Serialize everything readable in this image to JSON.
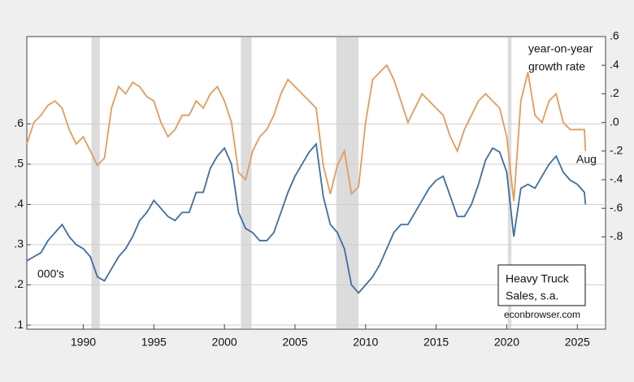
{
  "chart_data": {
    "type": "line",
    "title": [
      "Heavy Truck",
      "Sales, s.a."
    ],
    "source": "econbrowser.com",
    "annotations": [
      "year-on-year",
      "growth rate",
      "Aug",
      "000's"
    ],
    "x": [
      1986.0,
      1986.5,
      1987.0,
      1987.5,
      1988.0,
      1988.5,
      1989.0,
      1989.5,
      1990.0,
      1990.5,
      1991.0,
      1991.5,
      1992.0,
      1992.5,
      1993.0,
      1993.5,
      1994.0,
      1994.5,
      1995.0,
      1995.5,
      1996.0,
      1996.5,
      1997.0,
      1997.5,
      1998.0,
      1998.5,
      1999.0,
      1999.5,
      2000.0,
      2000.5,
      2001.0,
      2001.5,
      2002.0,
      2002.5,
      2003.0,
      2003.5,
      2004.0,
      2004.5,
      2005.0,
      2005.5,
      2006.0,
      2006.5,
      2007.0,
      2007.5,
      2008.0,
      2008.5,
      2009.0,
      2009.5,
      2010.0,
      2010.5,
      2011.0,
      2011.5,
      2012.0,
      2012.5,
      2013.0,
      2013.5,
      2014.0,
      2014.5,
      2015.0,
      2015.5,
      2016.0,
      2016.5,
      2017.0,
      2017.5,
      2018.0,
      2018.5,
      2019.0,
      2019.5,
      2020.0,
      2020.5,
      2021.0,
      2021.5,
      2022.0,
      2022.5,
      2023.0,
      2023.5,
      2024.0,
      2024.5,
      2025.0,
      2025.5,
      2025.58
    ],
    "series": [
      {
        "name": "level",
        "color": "#3d6ea3",
        "axis": "y",
        "values": [
          0.26,
          0.27,
          0.28,
          0.31,
          0.33,
          0.35,
          0.32,
          0.3,
          0.29,
          0.27,
          0.22,
          0.21,
          0.24,
          0.27,
          0.29,
          0.32,
          0.36,
          0.38,
          0.41,
          0.39,
          0.37,
          0.36,
          0.38,
          0.38,
          0.43,
          0.43,
          0.49,
          0.52,
          0.54,
          0.5,
          0.38,
          0.34,
          0.33,
          0.31,
          0.31,
          0.33,
          0.38,
          0.43,
          0.47,
          0.5,
          0.53,
          0.55,
          0.42,
          0.35,
          0.33,
          0.29,
          0.2,
          0.18,
          0.2,
          0.22,
          0.25,
          0.29,
          0.33,
          0.35,
          0.35,
          0.38,
          0.41,
          0.44,
          0.46,
          0.47,
          0.42,
          0.37,
          0.37,
          0.4,
          0.45,
          0.51,
          0.54,
          0.53,
          0.48,
          0.32,
          0.44,
          0.45,
          0.44,
          0.47,
          0.5,
          0.52,
          0.48,
          0.46,
          0.45,
          0.43,
          0.4
        ]
      },
      {
        "name": "growth",
        "color": "#e39b5c",
        "axis": "y2",
        "values": [
          -0.15,
          0.0,
          0.05,
          0.12,
          0.15,
          0.1,
          -0.05,
          -0.15,
          -0.1,
          -0.2,
          -0.3,
          -0.25,
          0.1,
          0.25,
          0.2,
          0.28,
          0.25,
          0.18,
          0.15,
          0.0,
          -0.1,
          -0.05,
          0.05,
          0.05,
          0.15,
          0.1,
          0.2,
          0.25,
          0.15,
          0.0,
          -0.35,
          -0.4,
          -0.2,
          -0.1,
          -0.05,
          0.05,
          0.2,
          0.3,
          0.25,
          0.2,
          0.15,
          0.1,
          -0.3,
          -0.5,
          -0.3,
          -0.2,
          -0.5,
          -0.45,
          0.0,
          0.3,
          0.35,
          0.4,
          0.3,
          0.15,
          0.0,
          0.1,
          0.2,
          0.15,
          0.1,
          0.05,
          -0.1,
          -0.2,
          -0.05,
          0.05,
          0.15,
          0.2,
          0.15,
          0.1,
          -0.1,
          -0.55,
          0.15,
          0.35,
          0.05,
          0.0,
          0.15,
          0.2,
          0.0,
          -0.05,
          -0.05,
          -0.05,
          -0.2
        ]
      }
    ],
    "recessions": [
      [
        1990.58,
        1991.17
      ],
      [
        2001.17,
        2001.92
      ],
      [
        2007.92,
        2009.5
      ],
      [
        2020.08,
        2020.33
      ]
    ],
    "xlim": [
      1986,
      2027
    ],
    "xticks": [
      1990,
      1995,
      2000,
      2005,
      2010,
      2015,
      2020,
      2025
    ],
    "ylim": [
      0.09,
      0.817
    ],
    "yticks": [
      {
        "value": 0.1,
        "label": ".1"
      },
      {
        "value": 0.2,
        "label": ".2"
      },
      {
        "value": 0.3,
        "label": ".3"
      },
      {
        "value": 0.4,
        "label": ".4"
      },
      {
        "value": 0.5,
        "label": ".5"
      },
      {
        "value": 0.6,
        "label": ".6"
      }
    ],
    "y2lim": [
      -1.445,
      0.6
    ],
    "y2ticks": [
      {
        "value": -0.8,
        "label": "-.8"
      },
      {
        "value": -0.6,
        "label": "-.6"
      },
      {
        "value": -0.4,
        "label": "-.4"
      },
      {
        "value": -0.2,
        "label": "-.2"
      },
      {
        "value": 0,
        "label": ".0"
      },
      {
        "value": 0.2,
        "label": ".2"
      },
      {
        "value": 0.4,
        "label": ".4"
      },
      {
        "value": 0.6,
        "label": ".6"
      }
    ],
    "grid": true
  }
}
